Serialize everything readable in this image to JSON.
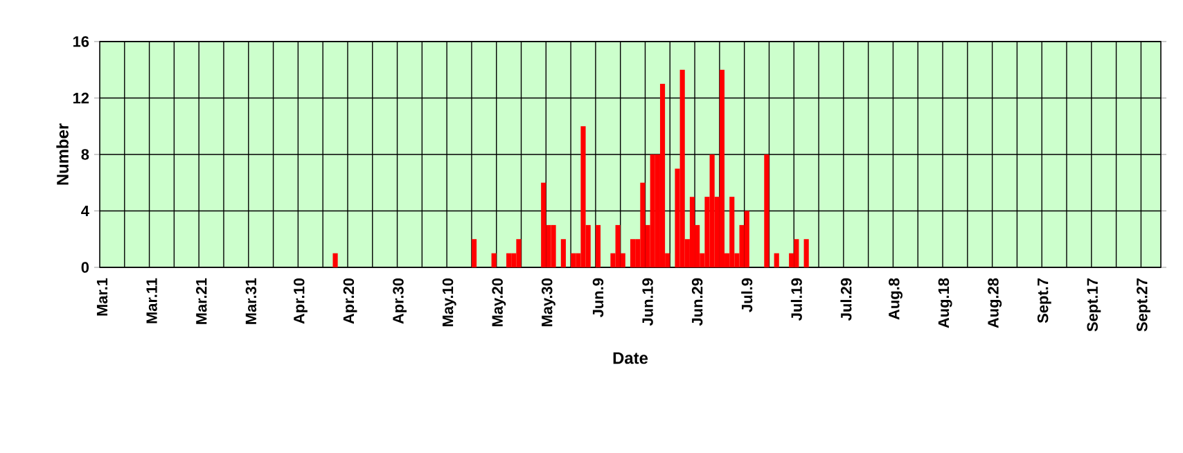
{
  "chart_data": {
    "type": "bar",
    "xlabel": "Date",
    "ylabel": "Number",
    "categories": [
      "Mar.1",
      null,
      null,
      null,
      null,
      null,
      null,
      null,
      null,
      null,
      "Mar.11",
      null,
      null,
      null,
      null,
      null,
      null,
      null,
      null,
      null,
      "Mar.21",
      null,
      null,
      null,
      null,
      null,
      null,
      null,
      null,
      null,
      "Mar.31",
      null,
      null,
      null,
      null,
      null,
      null,
      null,
      null,
      null,
      "Apr.10",
      null,
      null,
      null,
      null,
      null,
      null,
      null,
      null,
      null,
      "Apr.20",
      null,
      null,
      null,
      null,
      null,
      null,
      null,
      null,
      null,
      "Apr.30",
      null,
      null,
      null,
      null,
      null,
      null,
      null,
      null,
      null,
      "May.10",
      null,
      null,
      null,
      null,
      null,
      null,
      null,
      null,
      null,
      "May.20",
      null,
      null,
      null,
      null,
      null,
      null,
      null,
      null,
      null,
      "May.30",
      null,
      null,
      null,
      null,
      null,
      null,
      null,
      null,
      null,
      "Jun.9",
      null,
      null,
      null,
      null,
      null,
      null,
      null,
      null,
      null,
      "Jun.19",
      null,
      null,
      null,
      null,
      null,
      null,
      null,
      null,
      null,
      "Jun.29",
      null,
      null,
      null,
      null,
      null,
      null,
      null,
      null,
      null,
      "Jul.9",
      null,
      null,
      null,
      null,
      null,
      null,
      null,
      null,
      null,
      "Jul.19",
      null,
      null,
      null,
      null,
      null,
      null,
      null,
      null,
      null,
      "Jul.29",
      null,
      null,
      null,
      null,
      null,
      null,
      null,
      null,
      null,
      "Aug.8",
      null,
      null,
      null,
      null,
      null,
      null,
      null,
      null,
      null,
      "Aug.18",
      null,
      null,
      null,
      null,
      null,
      null,
      null,
      null,
      null,
      "Aug.28",
      null,
      null,
      null,
      null,
      null,
      null,
      null,
      null,
      null,
      "Sept.7",
      null,
      null,
      null,
      null,
      null,
      null,
      null,
      null,
      null,
      "Sept.17",
      null,
      null,
      null,
      null,
      null,
      null,
      null,
      null,
      null,
      "Sept.27",
      null,
      null,
      null
    ],
    "values": [
      0,
      0,
      0,
      0,
      0,
      0,
      0,
      0,
      0,
      0,
      0,
      0,
      0,
      0,
      0,
      0,
      0,
      0,
      0,
      0,
      0,
      0,
      0,
      0,
      0,
      0,
      0,
      0,
      0,
      0,
      0,
      0,
      0,
      0,
      0,
      0,
      0,
      0,
      0,
      0,
      0,
      0,
      0,
      0,
      0,
      0,
      0,
      1,
      0,
      0,
      0,
      0,
      0,
      0,
      0,
      0,
      0,
      0,
      0,
      0,
      0,
      0,
      0,
      0,
      0,
      0,
      0,
      0,
      0,
      0,
      0,
      0,
      0,
      0,
      0,
      2,
      0,
      0,
      0,
      1,
      0,
      0,
      1,
      1,
      2,
      0,
      0,
      0,
      0,
      6,
      3,
      3,
      0,
      2,
      0,
      1,
      1,
      10,
      3,
      0,
      3,
      0,
      0,
      1,
      3,
      1,
      0,
      2,
      2,
      6,
      3,
      8,
      8,
      13,
      1,
      0,
      7,
      14,
      2,
      5,
      3,
      1,
      5,
      8,
      5,
      14,
      1,
      5,
      1,
      3,
      4,
      0,
      0,
      0,
      8,
      0,
      1,
      0,
      0,
      1,
      2,
      0,
      2,
      0,
      0,
      0,
      0,
      0,
      0,
      0,
      0,
      0,
      0,
      0,
      0,
      0,
      0,
      0,
      0,
      0,
      0,
      0,
      0,
      0,
      0,
      0,
      0,
      0,
      0,
      0,
      0,
      0,
      0,
      0,
      0,
      0,
      0,
      0,
      0,
      0,
      0,
      0,
      0,
      0,
      0,
      0,
      0,
      0,
      0,
      0,
      0,
      0,
      0,
      0,
      0,
      0,
      0,
      0,
      0,
      0,
      0,
      0,
      0,
      0,
      0,
      0,
      0,
      0,
      0,
      0,
      0,
      0,
      0,
      0
    ],
    "color": "#ff0000",
    "ylim": [
      0,
      16
    ],
    "yticks": [
      0,
      4,
      8,
      12,
      16
    ],
    "grid": true
  }
}
